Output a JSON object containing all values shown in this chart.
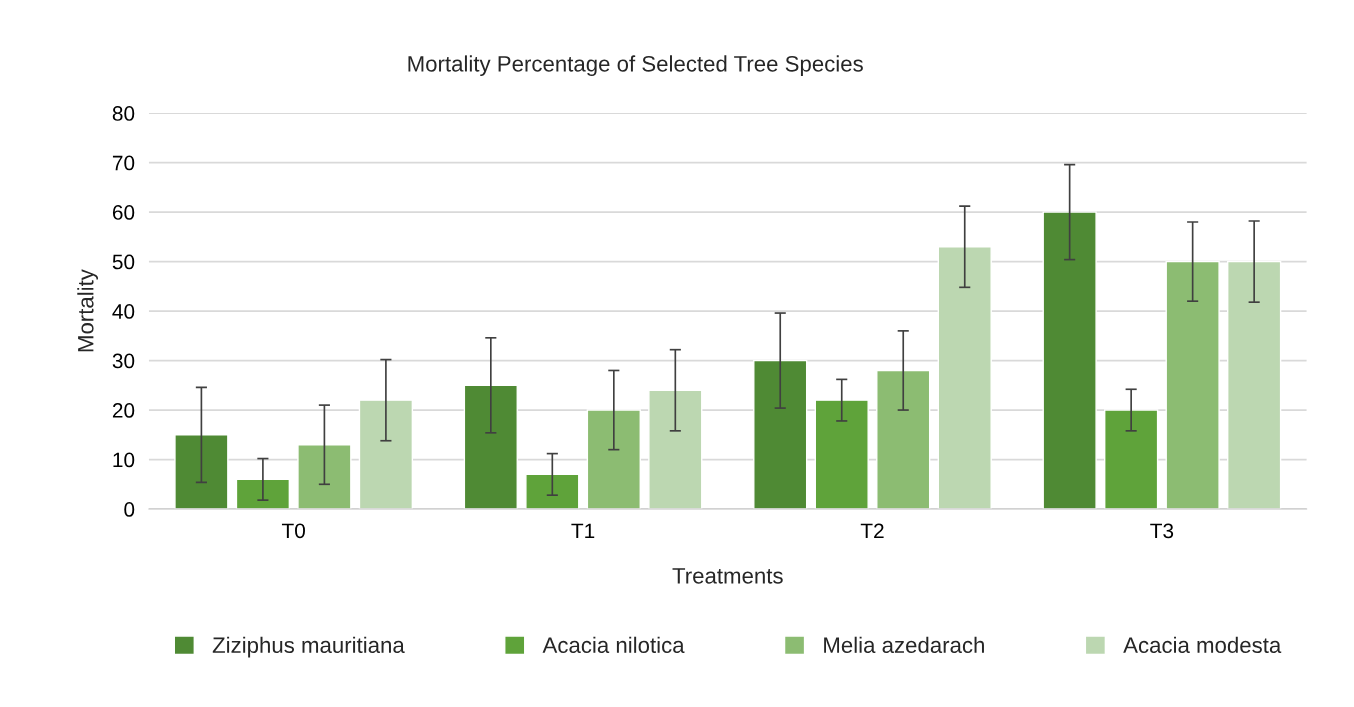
{
  "chart_data": {
    "type": "bar",
    "title": "Mortality Percentage of Selected Tree Species",
    "xlabel": "Treatments",
    "ylabel": "Mortality",
    "categories": [
      "T0",
      "T1",
      "T2",
      "T3"
    ],
    "series": [
      {
        "name": "Ziziphus mauritiana",
        "color": "#4f8a34",
        "values": [
          15,
          25,
          30,
          60
        ],
        "errors": [
          9.6,
          9.6,
          9.6,
          9.6
        ]
      },
      {
        "name": "Acacia nilotica",
        "color": "#5fa33a",
        "values": [
          6,
          7,
          22,
          20
        ],
        "errors": [
          4.2,
          4.2,
          4.2,
          4.2
        ]
      },
      {
        "name": "Melia azedarach",
        "color": "#8cbc72",
        "values": [
          13,
          20,
          28,
          50
        ],
        "errors": [
          8,
          8,
          8,
          8
        ]
      },
      {
        "name": "Acacia modesta",
        "color": "#bcd7b1",
        "values": [
          22,
          24,
          53,
          50
        ],
        "errors": [
          8.2,
          8.2,
          8.2,
          8.2
        ]
      }
    ],
    "ylim": [
      0,
      80
    ],
    "yticks": [
      0,
      10,
      20,
      30,
      40,
      50,
      60,
      70,
      80
    ],
    "grid": "y",
    "legend": "bottom"
  }
}
